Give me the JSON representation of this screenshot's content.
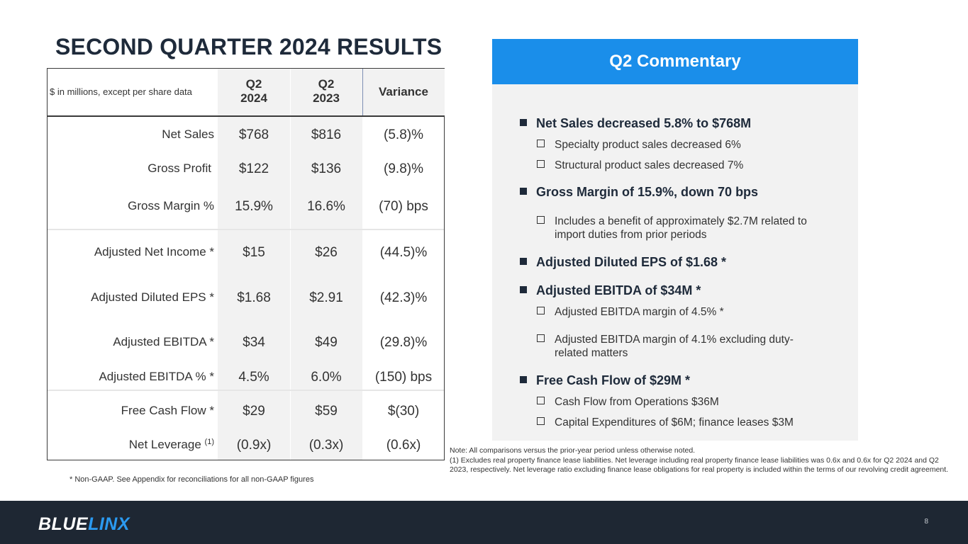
{
  "title": "SECOND QUARTER 2024 RESULTS",
  "table": {
    "header_note": "$ in millions, except per share data",
    "columns": [
      {
        "line1": "Q2",
        "line2": "2024"
      },
      {
        "line1": "Q2",
        "line2": "2023"
      },
      {
        "line1": "Variance",
        "line2": ""
      }
    ],
    "rows": [
      {
        "label": "Net Sales",
        "q2_2024": "$768",
        "q2_2023": "$816",
        "variance": "(5.8)%"
      },
      {
        "label": "Gross Profit",
        "q2_2024": "$122",
        "q2_2023": "$136",
        "variance": "(9.8)%"
      },
      {
        "label": "Gross Margin %",
        "q2_2024": "15.9%",
        "q2_2023": "16.6%",
        "variance": "(70) bps"
      },
      {
        "label": "Adjusted Net Income *",
        "q2_2024": "$15",
        "q2_2023": "$26",
        "variance": "(44.5)%"
      },
      {
        "label": "Adjusted Diluted EPS *",
        "q2_2024": "$1.68",
        "q2_2023": "$2.91",
        "variance": "(42.3)%"
      },
      {
        "label": "Adjusted EBITDA *",
        "q2_2024": "$34",
        "q2_2023": "$49",
        "variance": "(29.8)%"
      },
      {
        "label": "Adjusted EBITDA % *",
        "q2_2024": "4.5%",
        "q2_2023": "6.0%",
        "variance": "(150) bps"
      },
      {
        "label": "Free Cash Flow *",
        "q2_2024": "$29",
        "q2_2023": "$59",
        "variance": "$(30)"
      },
      {
        "label": "Net Leverage",
        "label_sup": "(1)",
        "q2_2024": "(0.9x)",
        "q2_2023": "(0.3x)",
        "variance": "(0.6x)"
      }
    ]
  },
  "footnote_nongaap": "* Non-GAAP. See Appendix for reconciliations for all non-GAAP figures",
  "commentary": {
    "heading": "Q2 Commentary",
    "bullets": [
      {
        "text": "Net Sales decreased 5.8% to $768M"
      },
      {
        "text": "Specialty product sales decreased 6%"
      },
      {
        "text": "Structural product sales decreased 7%"
      },
      {
        "text": "Gross Margin of 15.9%, down 70 bps"
      },
      {
        "text": "Includes a benefit of approximately $2.7M related to import duties from prior periods"
      },
      {
        "text": "Adjusted Diluted EPS of $1.68 *"
      },
      {
        "text": "Adjusted EBITDA of $34M *"
      },
      {
        "text": "Adjusted EBITDA margin of 4.5% *"
      },
      {
        "text": "Adjusted EBITDA margin of 4.1% excluding duty-related matters"
      },
      {
        "text": "Free Cash Flow of $29M *"
      },
      {
        "text": "Cash Flow from Operations $36M"
      },
      {
        "text": "Capital Expenditures of $6M; finance leases $3M"
      }
    ]
  },
  "note": {
    "line1": "Note:  All comparisons versus the prior-year period unless otherwise noted.",
    "line2": "(1) Excludes real property finance lease liabilities. Net leverage including real property finance lease liabilities was 0.6x and 0.6x for Q2 2024 and Q2 2023, respectively.  Net leverage ratio excluding finance lease obligations for real property is included within the terms of our revolving credit agreement."
  },
  "footer": {
    "logo": "BLUELINX",
    "page_number": "8"
  },
  "colors": {
    "accent": "#1a8eea",
    "navy": "#1e2a3a",
    "footer_bg": "#1e2733",
    "panel_bg": "#f2f2f2"
  }
}
